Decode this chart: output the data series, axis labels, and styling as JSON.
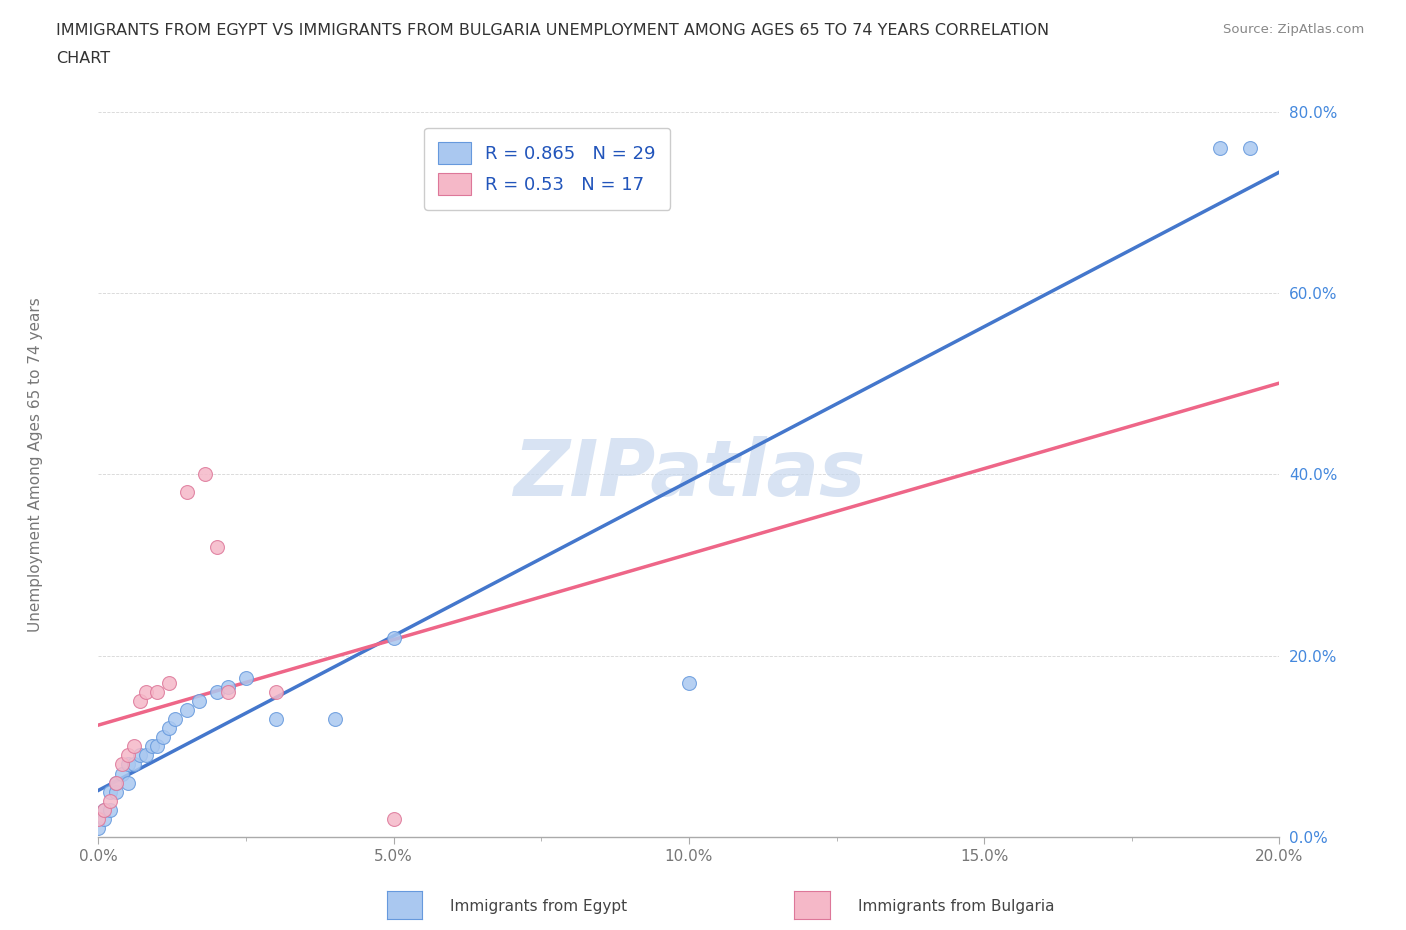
{
  "title_line1": "IMMIGRANTS FROM EGYPT VS IMMIGRANTS FROM BULGARIA UNEMPLOYMENT AMONG AGES 65 TO 74 YEARS CORRELATION",
  "title_line2": "CHART",
  "source": "Source: ZipAtlas.com",
  "ylabel_left": "Unemployment Among Ages 65 to 74 years",
  "xlim": [
    0.0,
    0.2
  ],
  "ylim": [
    0.0,
    0.8
  ],
  "xticks": [
    0.0,
    0.05,
    0.1,
    0.15,
    0.2
  ],
  "yticks": [
    0.0,
    0.2,
    0.4,
    0.6,
    0.8
  ],
  "xtick_labels": [
    "0.0%",
    "5.0%",
    "10.0%",
    "15.0%",
    "20.0%"
  ],
  "ytick_labels": [
    "0.0%",
    "20.0%",
    "40.0%",
    "60.0%",
    "80.0%"
  ],
  "egypt_color": "#aac8f0",
  "egypt_edge_color": "#6699dd",
  "bulgaria_color": "#f5b8c8",
  "bulgaria_edge_color": "#dd7799",
  "egypt_R": 0.865,
  "egypt_N": 29,
  "bulgaria_R": 0.53,
  "bulgaria_N": 17,
  "trend_egypt_color": "#4477cc",
  "trend_bulgaria_color": "#ee6688",
  "trend_egypt_dash": false,
  "trend_bulgaria_dash": false,
  "trend_bg_color": "#ddbbcc",
  "watermark": "ZIPatlas",
  "watermark_color": "#c8d8ee",
  "egypt_x": [
    0.0,
    0.001,
    0.001,
    0.002,
    0.002,
    0.003,
    0.003,
    0.004,
    0.005,
    0.005,
    0.006,
    0.007,
    0.008,
    0.009,
    0.01,
    0.011,
    0.012,
    0.013,
    0.015,
    0.017,
    0.02,
    0.022,
    0.025,
    0.03,
    0.04,
    0.05,
    0.1,
    0.19,
    0.195
  ],
  "egypt_y": [
    0.01,
    0.02,
    0.03,
    0.03,
    0.05,
    0.05,
    0.06,
    0.07,
    0.08,
    0.06,
    0.08,
    0.09,
    0.09,
    0.1,
    0.1,
    0.11,
    0.12,
    0.13,
    0.14,
    0.15,
    0.16,
    0.165,
    0.175,
    0.13,
    0.13,
    0.22,
    0.17,
    0.76,
    0.76
  ],
  "bulgaria_x": [
    0.0,
    0.001,
    0.002,
    0.003,
    0.004,
    0.005,
    0.006,
    0.007,
    0.008,
    0.01,
    0.012,
    0.015,
    0.018,
    0.02,
    0.022,
    0.03,
    0.05
  ],
  "bulgaria_y": [
    0.02,
    0.03,
    0.04,
    0.06,
    0.08,
    0.09,
    0.1,
    0.15,
    0.16,
    0.16,
    0.17,
    0.38,
    0.4,
    0.32,
    0.16,
    0.16,
    0.02
  ],
  "legend_box_egypt_fc": "#aac8f0",
  "legend_box_egypt_ec": "#6699dd",
  "legend_box_bulgaria_fc": "#f5b8c8",
  "legend_box_bulgaria_ec": "#dd7799",
  "legend_text_color": "#2255bb",
  "axis_color": "#aaaaaa",
  "grid_color": "#cccccc",
  "title_color": "#333333",
  "source_color": "#888888",
  "ylabel_color": "#777777",
  "xtick_color": "#777777",
  "ytick_color": "#4488dd"
}
